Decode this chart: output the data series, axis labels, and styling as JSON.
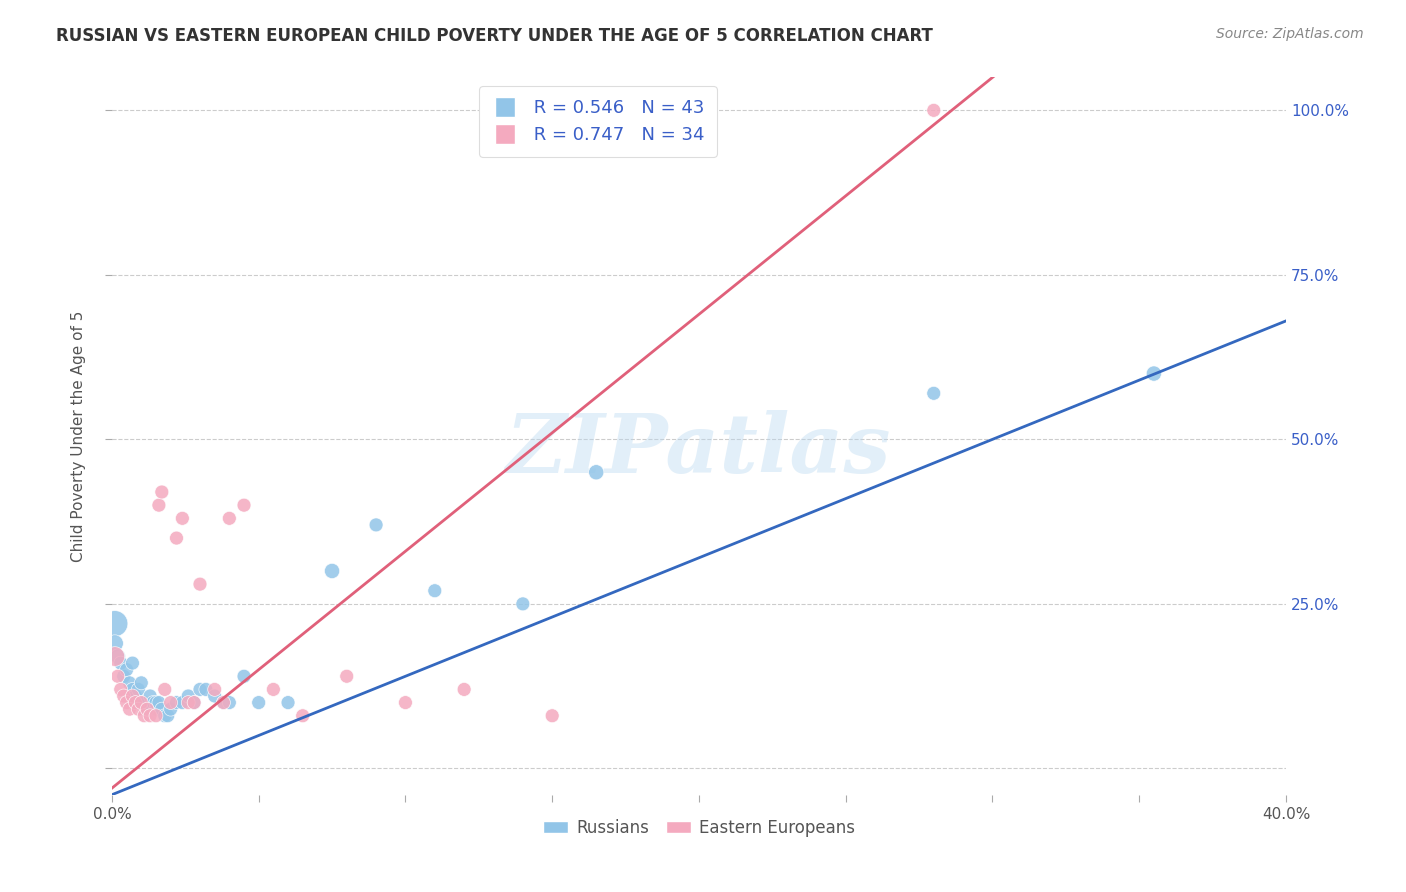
{
  "title": "RUSSIAN VS EASTERN EUROPEAN CHILD POVERTY UNDER THE AGE OF 5 CORRELATION CHART",
  "source": "Source: ZipAtlas.com",
  "ylabel": "Child Poverty Under the Age of 5",
  "xlim": [
    0.0,
    0.4
  ],
  "ylim": [
    -0.04,
    1.05
  ],
  "r_russian": "0.546",
  "n_russian": "43",
  "r_eastern": "0.747",
  "n_eastern": "34",
  "russian_color": "#92C5E8",
  "eastern_color": "#F4AABF",
  "russian_line_color": "#3468BF",
  "eastern_line_color": "#E0607A",
  "background_color": "#FFFFFF",
  "grid_color": "#CCCCCC",
  "watermark": "ZIPatlas",
  "legend_text_color": "#3A5FC8",
  "russians_x": [
    0.001,
    0.001,
    0.002,
    0.003,
    0.004,
    0.005,
    0.006,
    0.007,
    0.007,
    0.008,
    0.009,
    0.01,
    0.01,
    0.011,
    0.012,
    0.013,
    0.014,
    0.015,
    0.015,
    0.016,
    0.017,
    0.018,
    0.019,
    0.02,
    0.022,
    0.024,
    0.026,
    0.028,
    0.03,
    0.032,
    0.035,
    0.038,
    0.04,
    0.045,
    0.05,
    0.06,
    0.075,
    0.09,
    0.11,
    0.14,
    0.165,
    0.28,
    0.355
  ],
  "russians_y": [
    0.22,
    0.19,
    0.17,
    0.16,
    0.14,
    0.15,
    0.13,
    0.16,
    0.12,
    0.11,
    0.12,
    0.13,
    0.1,
    0.1,
    0.09,
    0.11,
    0.1,
    0.09,
    0.1,
    0.1,
    0.09,
    0.08,
    0.08,
    0.09,
    0.1,
    0.1,
    0.11,
    0.1,
    0.12,
    0.12,
    0.11,
    0.1,
    0.1,
    0.14,
    0.1,
    0.1,
    0.3,
    0.37,
    0.27,
    0.25,
    0.45,
    0.57,
    0.6
  ],
  "russians_size": [
    350,
    150,
    120,
    100,
    100,
    100,
    100,
    100,
    100,
    100,
    100,
    100,
    100,
    100,
    100,
    100,
    100,
    100,
    100,
    100,
    100,
    100,
    100,
    100,
    100,
    100,
    100,
    100,
    100,
    100,
    100,
    100,
    100,
    100,
    100,
    100,
    120,
    100,
    100,
    100,
    120,
    100,
    120
  ],
  "eastern_x": [
    0.001,
    0.002,
    0.003,
    0.004,
    0.005,
    0.006,
    0.007,
    0.008,
    0.009,
    0.01,
    0.011,
    0.012,
    0.013,
    0.015,
    0.016,
    0.017,
    0.018,
    0.02,
    0.022,
    0.024,
    0.026,
    0.028,
    0.03,
    0.035,
    0.038,
    0.04,
    0.045,
    0.055,
    0.065,
    0.08,
    0.1,
    0.12,
    0.15,
    0.28
  ],
  "eastern_y": [
    0.17,
    0.14,
    0.12,
    0.11,
    0.1,
    0.09,
    0.11,
    0.1,
    0.09,
    0.1,
    0.08,
    0.09,
    0.08,
    0.08,
    0.4,
    0.42,
    0.12,
    0.1,
    0.35,
    0.38,
    0.1,
    0.1,
    0.28,
    0.12,
    0.1,
    0.38,
    0.4,
    0.12,
    0.08,
    0.14,
    0.1,
    0.12,
    0.08,
    1.0
  ],
  "eastern_size": [
    200,
    100,
    100,
    100,
    100,
    100,
    100,
    100,
    100,
    100,
    100,
    100,
    100,
    100,
    100,
    100,
    100,
    100,
    100,
    100,
    100,
    100,
    100,
    100,
    100,
    100,
    100,
    100,
    100,
    100,
    100,
    100,
    100,
    100
  ],
  "blue_line_intercept": -0.04,
  "blue_line_slope": 1.8,
  "pink_line_intercept": -0.03,
  "pink_line_slope": 3.6
}
